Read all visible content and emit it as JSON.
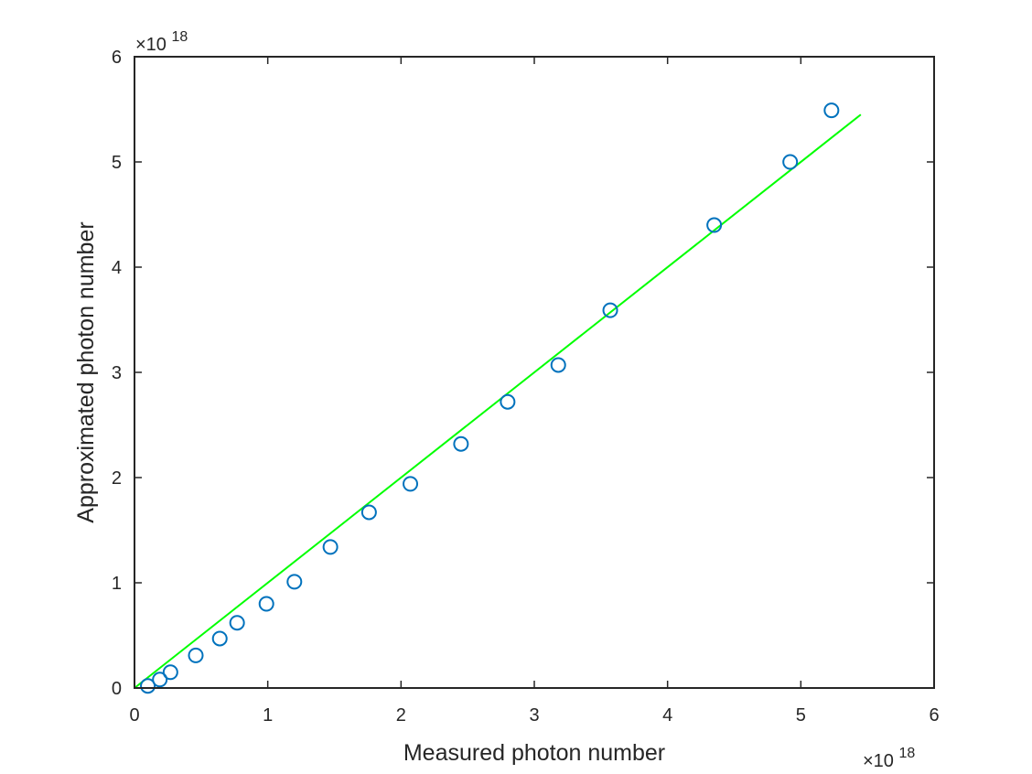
{
  "chart_data": {
    "type": "scatter",
    "title": "",
    "xlabel": "Measured photon number",
    "ylabel": "Approximated photon number",
    "xlim": [
      0,
      6
    ],
    "ylim": [
      0,
      6
    ],
    "x_ticks": [
      "0",
      "1",
      "2",
      "3",
      "4",
      "5",
      "6"
    ],
    "y_ticks": [
      "0",
      "1",
      "2",
      "3",
      "4",
      "5",
      "6"
    ],
    "x_exponent": {
      "prefix": "×10",
      "power": "18"
    },
    "y_exponent": {
      "prefix": "×10",
      "power": "18"
    },
    "grid": false,
    "legend": "none",
    "series": [
      {
        "kind": "markers",
        "marker": "circle",
        "color": "#0072BD",
        "points": [
          [
            0.1,
            0.02
          ],
          [
            0.19,
            0.08
          ],
          [
            0.27,
            0.15
          ],
          [
            0.46,
            0.31
          ],
          [
            0.64,
            0.47
          ],
          [
            0.77,
            0.62
          ],
          [
            0.99,
            0.8
          ],
          [
            1.2,
            1.01
          ],
          [
            1.47,
            1.34
          ],
          [
            1.76,
            1.67
          ],
          [
            2.07,
            1.94
          ],
          [
            2.45,
            2.32
          ],
          [
            2.8,
            2.72
          ],
          [
            3.18,
            3.07
          ],
          [
            3.57,
            3.59
          ],
          [
            4.35,
            4.4
          ],
          [
            4.92,
            5.0
          ],
          [
            5.23,
            5.49
          ]
        ]
      },
      {
        "kind": "line",
        "color": "#00FF00",
        "points": [
          [
            0,
            0
          ],
          [
            5.45,
            5.45
          ]
        ]
      }
    ]
  }
}
